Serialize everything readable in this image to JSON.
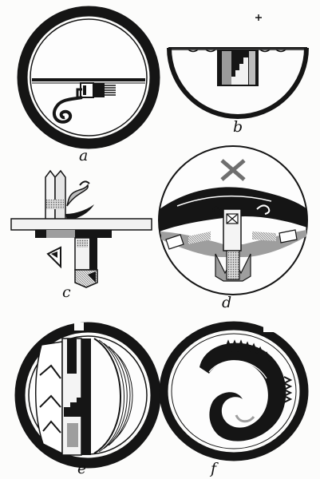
{
  "plate": {
    "figures": [
      {
        "id": "a",
        "label": "a",
        "motif": "circle-with-hook-spiral"
      },
      {
        "id": "b",
        "label": "b",
        "motif": "half-bowl-with-stepped-block"
      },
      {
        "id": "c",
        "label": "c",
        "motif": "crossed-bar-feather-design"
      },
      {
        "id": "d",
        "label": "d",
        "motif": "bird-wing-design"
      },
      {
        "id": "e",
        "label": "e",
        "motif": "stepped-band-design"
      },
      {
        "id": "f",
        "label": "f",
        "motif": "spiral-feather-design"
      }
    ],
    "colors": {
      "ink": "#151515",
      "paper": "#fcfcfb",
      "gray": "#8f8f8f",
      "light_gray": "#c9c9c9"
    }
  }
}
